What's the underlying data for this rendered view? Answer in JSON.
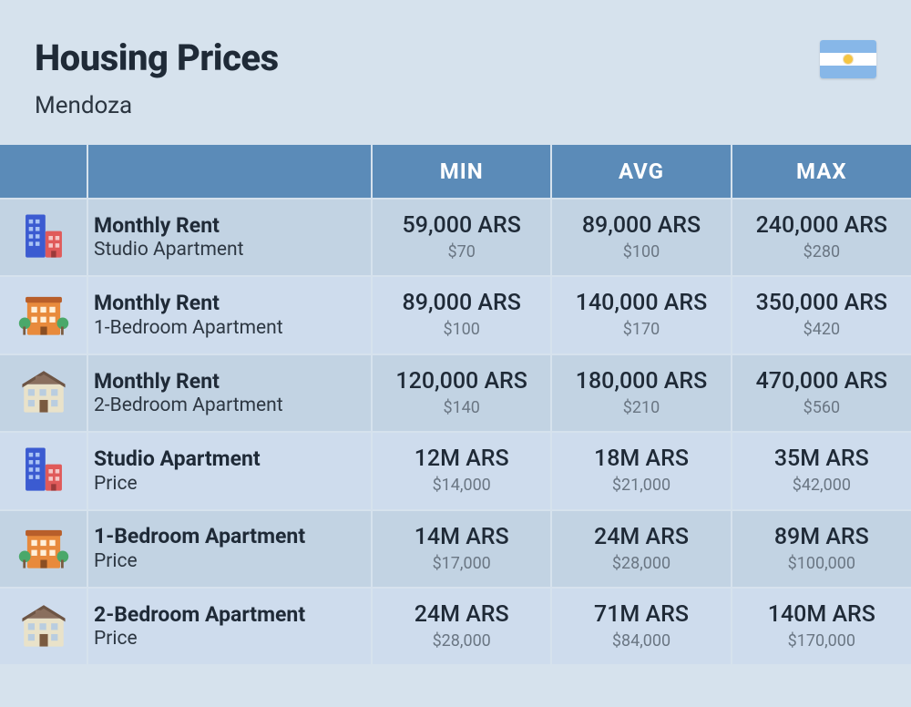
{
  "header": {
    "title": "Housing Prices",
    "subtitle": "Mendoza",
    "flag": {
      "top_color": "#87b7e8",
      "middle_color": "#ffffff",
      "bottom_color": "#87b7e8",
      "sun_color": "#f5c542"
    }
  },
  "table": {
    "columns": {
      "min": "MIN",
      "avg": "AVG",
      "max": "MAX"
    },
    "header_bg": "#5b8bb8",
    "header_fg": "#ffffff",
    "row_bg_alt": "#c2d3e3",
    "row_bg_norm": "#cedced",
    "grid_color": "#d6e2ed",
    "rows": [
      {
        "icon": "tall-building",
        "title": "Monthly Rent",
        "subtitle": "Studio Apartment",
        "min": {
          "ars": "59,000 ARS",
          "usd": "$70"
        },
        "avg": {
          "ars": "89,000 ARS",
          "usd": "$100"
        },
        "max": {
          "ars": "240,000 ARS",
          "usd": "$280"
        }
      },
      {
        "icon": "orange-building",
        "title": "Monthly Rent",
        "subtitle": "1-Bedroom Apartment",
        "min": {
          "ars": "89,000 ARS",
          "usd": "$100"
        },
        "avg": {
          "ars": "140,000 ARS",
          "usd": "$170"
        },
        "max": {
          "ars": "350,000 ARS",
          "usd": "$420"
        }
      },
      {
        "icon": "house",
        "title": "Monthly Rent",
        "subtitle": "2-Bedroom Apartment",
        "min": {
          "ars": "120,000 ARS",
          "usd": "$140"
        },
        "avg": {
          "ars": "180,000 ARS",
          "usd": "$210"
        },
        "max": {
          "ars": "470,000 ARS",
          "usd": "$560"
        }
      },
      {
        "icon": "tall-building",
        "title": "Studio Apartment",
        "subtitle": "Price",
        "min": {
          "ars": "12M ARS",
          "usd": "$14,000"
        },
        "avg": {
          "ars": "18M ARS",
          "usd": "$21,000"
        },
        "max": {
          "ars": "35M ARS",
          "usd": "$42,000"
        }
      },
      {
        "icon": "orange-building",
        "title": "1-Bedroom Apartment",
        "subtitle": "Price",
        "min": {
          "ars": "14M ARS",
          "usd": "$17,000"
        },
        "avg": {
          "ars": "24M ARS",
          "usd": "$28,000"
        },
        "max": {
          "ars": "89M ARS",
          "usd": "$100,000"
        }
      },
      {
        "icon": "house",
        "title": "2-Bedroom Apartment",
        "subtitle": "Price",
        "min": {
          "ars": "24M ARS",
          "usd": "$28,000"
        },
        "avg": {
          "ars": "71M ARS",
          "usd": "$84,000"
        },
        "max": {
          "ars": "140M ARS",
          "usd": "$170,000"
        }
      }
    ]
  },
  "icons": {
    "tall_colors": {
      "tall": "#3b5bd1",
      "short": "#e05a5a",
      "win": "#a9c3f5"
    },
    "orange_colors": {
      "body": "#e88a3c",
      "roof": "#b85e2a",
      "win": "#fff0d9",
      "tree": "#4aa86a"
    },
    "house_colors": {
      "body": "#e9e2c9",
      "roof": "#8a6f5e",
      "win": "#b9cde0",
      "door": "#7a5a3f"
    }
  }
}
